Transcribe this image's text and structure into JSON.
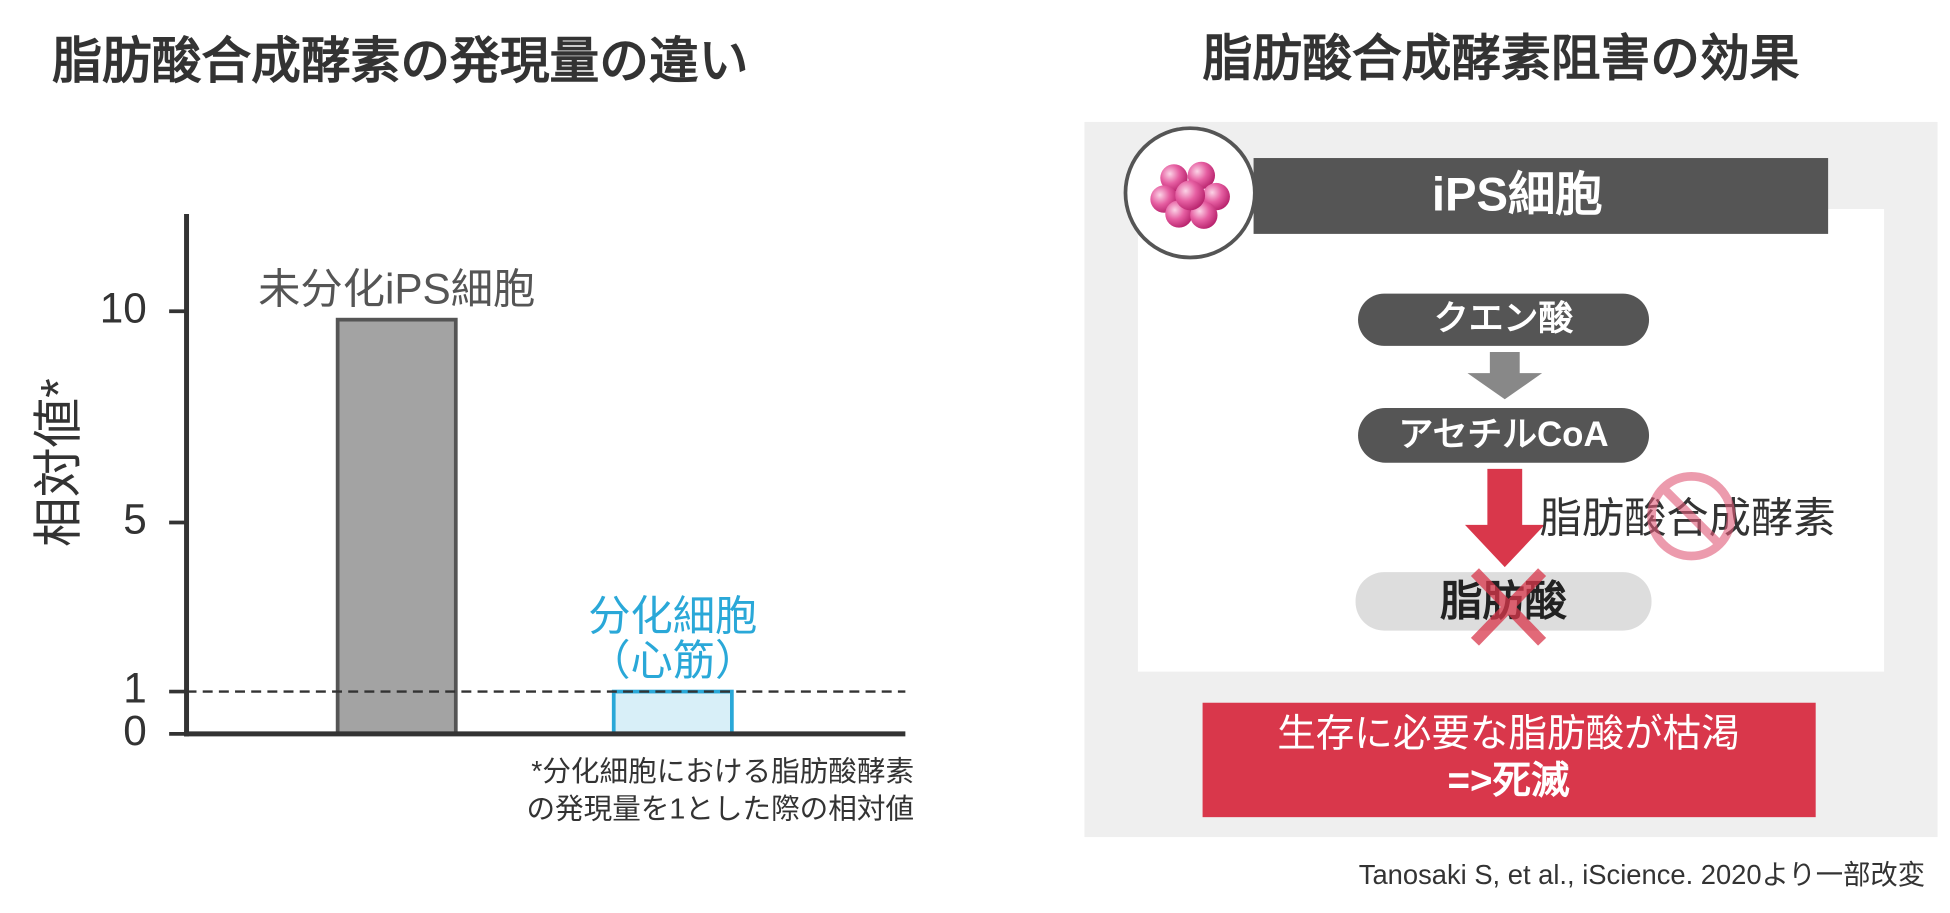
{
  "chart_data": {
    "type": "bar",
    "title": "脂肪酸合成酵素の発現量の違い",
    "y_label": "相対値*",
    "categories": [
      "未分化iPS細胞",
      "分化細胞\n（心筋）"
    ],
    "values": [
      9.8,
      1
    ],
    "colors": [
      "#a3a3a3",
      "#d8eff8"
    ],
    "edge_colors": [
      "#555555",
      "#2aa8d8"
    ],
    "label_colors": [
      "#555555",
      "#2aa8d8"
    ],
    "ylim": [
      0,
      12.3
    ],
    "yticks": [
      0,
      1,
      5,
      10
    ],
    "reference_line": 1,
    "footnote": [
      "*分化細胞における脂肪酸酵素",
      "の発現量を1とした際の相対値"
    ]
  },
  "diagram": {
    "title": "脂肪酸合成酵素阻害の効果",
    "header": "iPS細胞",
    "steps": [
      "クエン酸",
      "アセチルCoA",
      "脂肪酸"
    ],
    "enzyme": "脂肪酸合成酵素",
    "result": [
      "生存に必要な脂肪酸が枯渇",
      "=>死滅"
    ]
  },
  "citation": "Tanosaki S, et al., iScience. 2020より一部改変"
}
